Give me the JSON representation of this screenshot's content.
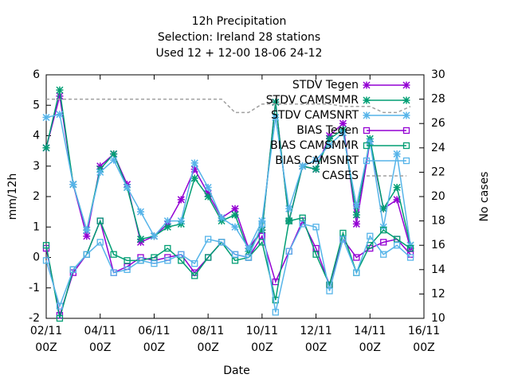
{
  "chart_data": {
    "type": "line",
    "title": [
      "12h Precipitation",
      "Selection: Ireland      28 stations",
      "Used  12 + 12-00 18-06 24-12"
    ],
    "xlabel": "Date",
    "ylabel": "mm/12h",
    "y2label": "No cases",
    "categories": [
      "02/11 00Z",
      null,
      null,
      null,
      "04/11 00Z",
      null,
      null,
      null,
      "06/11 00Z",
      null,
      null,
      null,
      "08/11 00Z",
      null,
      null,
      null,
      "10/11 00Z",
      null,
      null,
      null,
      "12/11 00Z",
      null,
      null,
      null,
      "14/11 00Z",
      null,
      null,
      null,
      "16/11 00Z"
    ],
    "ylim": [
      -2,
      6
    ],
    "yticks": [
      -2,
      -1,
      0,
      1,
      2,
      3,
      4,
      5,
      6
    ],
    "y2lim": [
      10,
      30
    ],
    "y2ticks": [
      10,
      12,
      14,
      16,
      18,
      20,
      22,
      24,
      26,
      28,
      30
    ],
    "grid": false,
    "legend": "top-right",
    "series": [
      {
        "name": "STDV Tegen",
        "color": "#9400d3",
        "marker": "star",
        "values": [
          3.6,
          5.3,
          2.4,
          0.7,
          3.0,
          3.4,
          2.4,
          0.5,
          0.7,
          1.1,
          1.9,
          2.9,
          2.1,
          1.3,
          1.6,
          0.3,
          0.9,
          5.1,
          1.2,
          3.0,
          2.9,
          4.0,
          4.4,
          1.1,
          3.8,
          1.6,
          1.9,
          0.3,
          null
        ]
      },
      {
        "name": "STDV CAMSMMR",
        "color": "#009e73",
        "marker": "star",
        "values": [
          3.6,
          5.5,
          2.4,
          0.9,
          2.9,
          3.4,
          2.3,
          0.6,
          0.7,
          1.0,
          1.1,
          2.6,
          2.0,
          1.2,
          1.4,
          0.2,
          0.9,
          5.1,
          1.2,
          3.0,
          2.9,
          3.9,
          4.2,
          1.4,
          3.9,
          1.6,
          2.3,
          0.4,
          null
        ]
      },
      {
        "name": "STDV CAMSNRT",
        "color": "#56b4e9",
        "marker": "star",
        "values": [
          4.6,
          4.7,
          2.4,
          0.9,
          2.8,
          3.2,
          2.3,
          1.5,
          0.7,
          1.2,
          1.2,
          3.1,
          2.3,
          1.3,
          1.0,
          0.3,
          1.2,
          4.6,
          1.6,
          3.0,
          3.2,
          3.7,
          4.1,
          1.7,
          3.8,
          1.0,
          3.4,
          0.4,
          null
        ]
      },
      {
        "name": "BIAS Tegen",
        "color": "#9400d3",
        "marker": "square",
        "values": [
          0.3,
          -1.9,
          -0.5,
          0.1,
          1.2,
          -0.5,
          -0.3,
          0.0,
          -0.1,
          0.0,
          0.1,
          -0.5,
          0.0,
          0.5,
          0.1,
          0.0,
          0.7,
          -0.8,
          0.2,
          1.2,
          0.3,
          -0.9,
          0.6,
          0.0,
          0.3,
          0.5,
          0.6,
          0.1,
          null
        ]
      },
      {
        "name": "BIAS CAMSMMR",
        "color": "#009e73",
        "marker": "square",
        "values": [
          0.4,
          -2.0,
          -0.4,
          0.1,
          1.2,
          0.1,
          -0.1,
          -0.1,
          0.0,
          0.3,
          -0.1,
          -0.6,
          0.0,
          0.5,
          -0.1,
          0.0,
          0.5,
          -1.4,
          1.2,
          1.3,
          0.1,
          -0.9,
          0.8,
          -0.5,
          0.4,
          0.9,
          0.6,
          0.3,
          null
        ]
      },
      {
        "name": "BIAS CAMSNRT",
        "color": "#56b4e9",
        "marker": "square",
        "values": [
          -0.1,
          -1.6,
          -0.4,
          0.1,
          0.5,
          -0.5,
          -0.4,
          -0.1,
          -0.2,
          -0.1,
          0.1,
          -0.2,
          0.6,
          0.5,
          0.1,
          0.0,
          1.1,
          -1.8,
          0.2,
          1.1,
          1.0,
          -1.1,
          0.6,
          -0.5,
          0.7,
          0.1,
          0.4,
          0.0,
          null
        ]
      },
      {
        "name": "CASES",
        "color": "#a0a0a0",
        "marker": "none",
        "dash": true,
        "axis": "y2",
        "values": [
          28,
          28,
          28,
          28,
          28,
          28,
          28,
          28,
          28,
          28,
          28,
          28,
          28,
          28,
          26.9,
          26.9,
          27.6,
          27.6,
          27.6,
          27.6,
          27.6,
          27.6,
          27.4,
          27.4,
          27.4,
          26.9,
          26.9,
          27.4,
          null
        ]
      }
    ]
  }
}
